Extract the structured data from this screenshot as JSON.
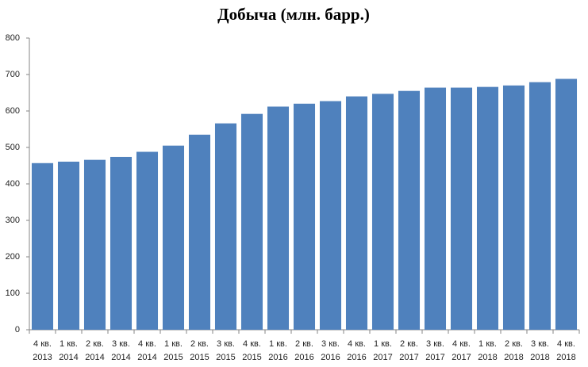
{
  "chart_data": {
    "type": "bar",
    "title": "Добыча (млн. барр.)",
    "categories": [
      [
        "4 кв.",
        "2013"
      ],
      [
        "1 кв.",
        "2014"
      ],
      [
        "2 кв.",
        "2014"
      ],
      [
        "3 кв.",
        "2014"
      ],
      [
        "4 кв.",
        "2014"
      ],
      [
        "1 кв.",
        "2015"
      ],
      [
        "2 кв.",
        "2015"
      ],
      [
        "3 кв.",
        "2015"
      ],
      [
        "4 кв.",
        "2015"
      ],
      [
        "1 кв.",
        "2016"
      ],
      [
        "2 кв.",
        "2016"
      ],
      [
        "3 кв.",
        "2016"
      ],
      [
        "4 кв.",
        "2016"
      ],
      [
        "1 кв.",
        "2017"
      ],
      [
        "2 кв.",
        "2017"
      ],
      [
        "3 кв.",
        "2017"
      ],
      [
        "4 кв.",
        "2017"
      ],
      [
        "1 кв.",
        "2018"
      ],
      [
        "2 кв.",
        "2018"
      ],
      [
        "3 кв.",
        "2018"
      ],
      [
        "4 кв.",
        "2018"
      ]
    ],
    "values": [
      457,
      461,
      466,
      474,
      488,
      505,
      535,
      566,
      592,
      612,
      620,
      627,
      640,
      647,
      655,
      664,
      664,
      666,
      670,
      679,
      688
    ],
    "color": "#4f81bd",
    "ylim": [
      0,
      800
    ],
    "yticks": [
      0,
      100,
      200,
      300,
      400,
      500,
      600,
      700,
      800
    ],
    "grid": false
  }
}
